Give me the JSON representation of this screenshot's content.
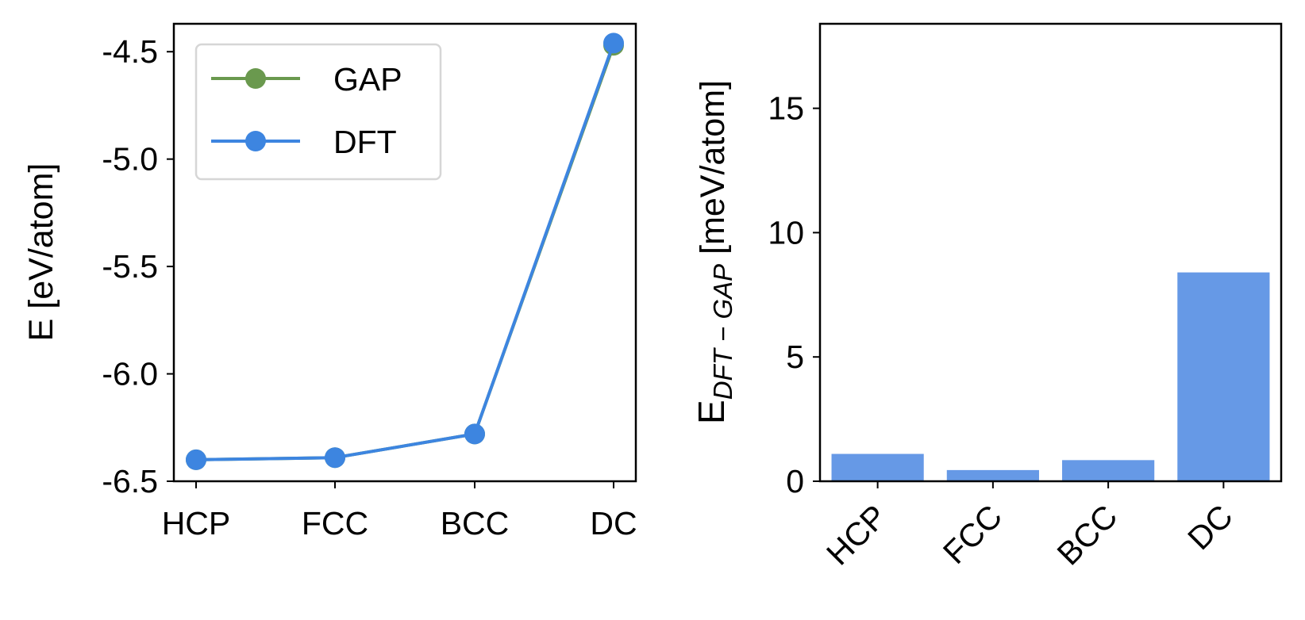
{
  "chart_data": [
    {
      "type": "line",
      "categories": [
        "HCP",
        "FCC",
        "BCC",
        "DC"
      ],
      "ylabel": "E [eV/atom]",
      "xlabel": "",
      "ylim": [
        -6.5,
        -4.37
      ],
      "yticks": [
        -6.5,
        -6.0,
        -5.5,
        -5.0,
        -4.5
      ],
      "ytick_labels": [
        "-6.5",
        "-6.0",
        "-5.5",
        "-5.0",
        "-4.5"
      ],
      "series": [
        {
          "name": "GAP",
          "color": "#6a994e",
          "values": [
            -6.4,
            -6.39,
            -6.28,
            -4.47
          ]
        },
        {
          "name": "DFT",
          "color": "#3d85e0",
          "values": [
            -6.4,
            -6.39,
            -6.28,
            -4.46
          ]
        }
      ],
      "legend": {
        "position": "top-left"
      }
    },
    {
      "type": "bar",
      "categories": [
        "HCP",
        "FCC",
        "BCC",
        "DC"
      ],
      "values": [
        1.1,
        0.45,
        0.85,
        8.4
      ],
      "color": "#6699e6",
      "ylabel_main": "E",
      "ylabel_sub": "DFT − GAP",
      "ylabel_unit": " [meV/atom]",
      "xlabel": "",
      "ylim": [
        0,
        18.4
      ],
      "yticks": [
        0,
        5,
        10,
        15
      ],
      "ytick_labels": [
        "0",
        "5",
        "10",
        "15"
      ]
    }
  ]
}
